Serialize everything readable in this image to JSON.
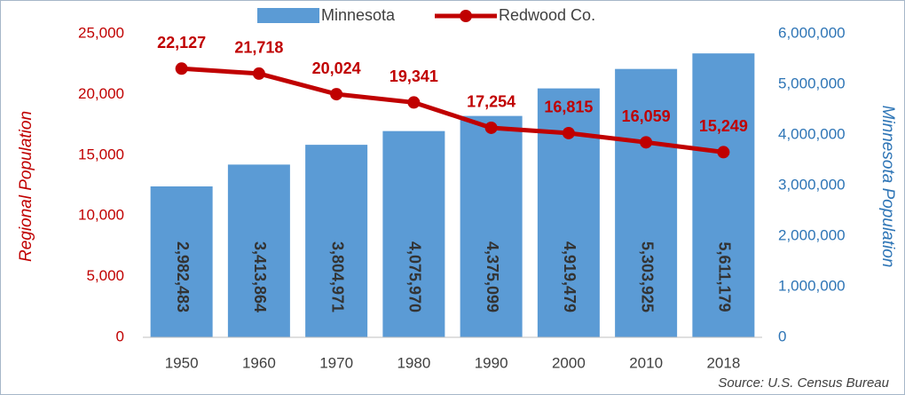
{
  "chart_data": {
    "type": "combo",
    "categories": [
      "1950",
      "1960",
      "1970",
      "1980",
      "1990",
      "2000",
      "2010",
      "2018"
    ],
    "series": [
      {
        "name": "Minnesota",
        "type": "bar",
        "axis": "y2",
        "color": "#5b9bd5",
        "values": [
          2982483,
          3413864,
          3804971,
          4075970,
          4375099,
          4919479,
          5303925,
          5611179
        ],
        "value_labels": [
          "2,982,483",
          "3,413,864",
          "3,804,971",
          "4,075,970",
          "4,375,099",
          "4,919,479",
          "5,303,925",
          "5,611,179"
        ]
      },
      {
        "name": "Redwood Co.",
        "type": "line",
        "axis": "y",
        "color": "#c00000",
        "values": [
          22127,
          21718,
          20024,
          19341,
          17254,
          16815,
          16059,
          15249
        ],
        "value_labels": [
          "22,127",
          "21,718",
          "20,024",
          "19,341",
          "17,254",
          "16,815",
          "16,059",
          "15,249"
        ]
      }
    ],
    "ylabel": "Regional Population",
    "y2label": "Minnesota Population",
    "ylim": [
      0,
      25000
    ],
    "yticks": [
      0,
      {
        "value": 5000,
        "label": "5,000"
      },
      {
        "value": 10000,
        "label": "10,000"
      },
      {
        "value": 15000,
        "label": "15,000"
      },
      {
        "value": 20000,
        "label": "20,000"
      },
      {
        "value": 25000,
        "label": "25,000"
      }
    ],
    "y2lim": [
      0,
      6000000
    ],
    "y2ticks": [
      0,
      {
        "value": 1000000,
        "label": "1,000,000"
      },
      {
        "value": 2000000,
        "label": "2,000,000"
      },
      {
        "value": 3000000,
        "label": "3,000,000"
      },
      {
        "value": 4000000,
        "label": "4,000,000"
      },
      {
        "value": 5000000,
        "label": "5,000,000"
      },
      {
        "value": 6000000,
        "label": "6,000,000"
      }
    ],
    "grid": false,
    "legend": "top",
    "source": "Source: U.S. Census Bureau"
  }
}
